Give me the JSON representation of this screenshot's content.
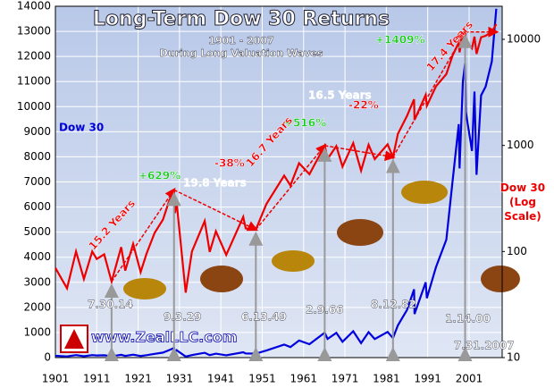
{
  "chart_data": {
    "type": "line",
    "title": "Long-Term Dow 30 Returns",
    "subtitle": "1901 - 2007",
    "subtitle2": "During Long Valuation Waves",
    "source": "www.ZealLLC.com",
    "x": [
      1901,
      1903.8,
      1906,
      1907.9,
      1909.9,
      1911,
      1912.8,
      1914.58,
      1916.9,
      1917.9,
      1919.8,
      1921.6,
      1923,
      1925,
      1927,
      1928.5,
      1929.67,
      1929.9,
      1930.3,
      1932.5,
      1934,
      1937.1,
      1938.3,
      1939.8,
      1942.3,
      1946.4,
      1947,
      1949.45,
      1952,
      1956.3,
      1957.8,
      1959.9,
      1962.4,
      1966.1,
      1966.8,
      1968.9,
      1970.4,
      1973,
      1974.9,
      1976.7,
      1978.2,
      1981.3,
      1982.61,
      1983.8,
      1986,
      1987.7,
      1987.8,
      1990.5,
      1990.8,
      1993,
      1995.5,
      1997,
      1998.5,
      1998.7,
      1999.5,
      2000.04,
      2000.2,
      2001.7,
      2002.3,
      2002.8,
      2003.9,
      2005,
      2006.5,
      2007.58
    ],
    "series": [
      {
        "name": "Dow 30",
        "color": "#0000dd",
        "axis": "y",
        "values": [
          70,
          45,
          100,
          55,
          100,
          85,
          94,
          52,
          110,
          66,
          118,
          64,
          95,
          150,
          200,
          300,
          381,
          230,
          294,
          41,
          100,
          194,
          99,
          155,
          93,
          212,
          165,
          161,
          280,
          520,
          420,
          680,
          535,
          995,
          744,
          985,
          631,
          1051,
          578,
          1014,
          742,
          1024,
          777,
          1287,
          1900,
          2722,
          1738,
          2999,
          2365,
          3600,
          4700,
          7000,
          9300,
          7539,
          11000,
          11723,
          9800,
          8236,
          10600,
          7286,
          10450,
          10800,
          11800,
          13900
        ]
      },
      {
        "name": "Dow 30 (Log Scale)",
        "color": "#ee0000",
        "axis": "y2",
        "values": [
          70,
          45,
          100,
          55,
          100,
          85,
          94,
          52,
          110,
          66,
          118,
          64,
          95,
          150,
          200,
          300,
          381,
          230,
          294,
          41,
          100,
          194,
          99,
          155,
          93,
          212,
          165,
          161,
          280,
          520,
          420,
          680,
          535,
          995,
          744,
          985,
          631,
          1051,
          578,
          1014,
          742,
          1024,
          777,
          1287,
          1900,
          2722,
          1738,
          2999,
          2365,
          3600,
          4700,
          7000,
          9300,
          7539,
          11000,
          11723,
          9800,
          8236,
          10600,
          7286,
          10450,
          10800,
          11800,
          13900
        ]
      }
    ],
    "xlim": [
      1901,
      2009
    ],
    "xticks": [
      1901,
      1911,
      1921,
      1931,
      1941,
      1951,
      1961,
      1971,
      1981,
      1991,
      2001
    ],
    "ylim": [
      0,
      14000
    ],
    "yticks": [
      0,
      1000,
      2000,
      3000,
      4000,
      5000,
      6000,
      7000,
      8000,
      9000,
      10000,
      11000,
      12000,
      13000,
      14000
    ],
    "y2lim": [
      10,
      20500
    ],
    "y2ticks": [
      10,
      100,
      1000,
      10000
    ],
    "y2log": true,
    "grid": true,
    "annotations": [
      "7.30.14",
      "9.3.29",
      "6.13.49",
      "2.9.66",
      "8.12.82",
      "1.14.00",
      "7.31.2007",
      "+629%",
      "-38%",
      "+516%",
      "-22%",
      "+1409%",
      "15.2 Years",
      "19.8 Years",
      "16.7 Years",
      "16.5 Years",
      "17.4 Years"
    ]
  }
}
